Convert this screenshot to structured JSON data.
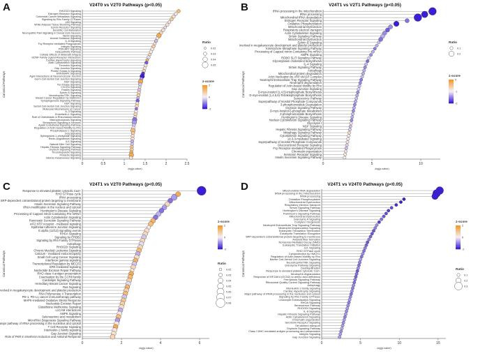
{
  "chart_data": [
    {
      "panel": "A",
      "type": "scatter",
      "title": "V24T0 vs V2T0 Pathways (p<0.05)",
      "xlabel": "-log(p-value)",
      "ylabel": "Canonical Pathways",
      "xlim": [
        0,
        2.5
      ],
      "xticks": [
        0,
        0.5,
        1,
        1.5,
        2,
        2.5
      ],
      "categories": [
        "RHOGDI Signaling",
        "Estrogen Receptor Signaling",
        "Colorectal Cancer Metastasis Signaling",
        "Signaling by Rho Family GTPases",
        "p53 Signaling",
        "White Adipose Tissue Browning Pathway",
        "Ephrin Receptor Signaling",
        "Dendritic Cell Maturation",
        "Neuropathic Pain Signaling In Dorsal Horn Neurons",
        "Netrin Signaling",
        "Axonal Guidance Signaling",
        "IL-8 Signaling",
        "Fcy Receptor-mediated Phagocytosis",
        "Integrin Signaling",
        "PI3K/AKT Signaling",
        "Osteoarthritis Pathway",
        "Cellular Effects of Sildenafil (Viagra)",
        "GDNF Family Ligand-Receptor Interactions",
        "Cardiac Hypertrophy Signaling",
        "Actin Cytoskeleton Signaling",
        "Thrombin Signaling",
        "Gap Junction Signaling",
        "Protein Kinase A Signaling",
        "ERK/MAPK Signaling",
        "Agrin Interactions at Neuromuscular Junction",
        "Germ Cell-Sertoli Cell Junction Signaling",
        "NGF Signaling",
        "Tec Kinase Signaling",
        "CXCR4 Signaling",
        "Paxillin Signaling",
        "Ephrin B Signaling",
        "Neurotrophin/TRK Signaling",
        "Breast Cancer Regulation by Stathmin1",
        "Synaptogenesis Signaling Pathway",
        "HGF Signaling",
        "Sertoli Cell-Sertoli Cell Junction Signaling",
        "Molecular Mechanisms of Cancer",
        "IL-3 Signaling",
        "Endothelin-1 Signaling",
        "Role of Osteoblasts in Rheumatoid Arthritis",
        "Macropinocytosis Signaling",
        "Semaphorin Signaling in Neurons",
        "Apelin Endothelial Signaling Pathway",
        "Regulation of Actin-based Motility by Rho",
        "Phospholipase C Signaling",
        "Gαq Signaling",
        "Sphingosine-1-phosphate Signaling",
        "Renin-Angiotensin Signaling",
        "ILK Signaling",
        "Natural Killer Cell Signaling",
        "Hepatic Fibrosis Signaling Pathway",
        "Oxytocin Signaling Pathway",
        "Thrombopoietin Signaling",
        "Prolactin Signaling",
        "Glioma Invasiveness Signaling"
      ],
      "x": [
        2.3,
        2.23,
        2.18,
        2.13,
        2.08,
        2.03,
        1.98,
        1.93,
        1.88,
        1.83,
        1.79,
        1.76,
        1.73,
        1.7,
        1.67,
        1.64,
        1.61,
        1.58,
        1.55,
        1.53,
        1.51,
        1.49,
        1.47,
        1.45,
        1.43,
        1.41,
        1.39,
        1.38,
        1.37,
        1.36,
        1.35,
        1.34,
        1.33,
        1.32,
        1.31,
        1.3,
        1.29,
        1.28,
        1.27,
        1.26,
        1.25,
        1.24,
        1.23,
        1.22,
        1.21,
        1.21,
        1.2,
        1.2,
        1.19,
        1.19,
        1.18,
        1.18,
        1.17,
        1.17,
        1.16
      ],
      "zscore": [
        1.2,
        0.3,
        0.4,
        0.8,
        0.2,
        0.4,
        -0.2,
        0.4,
        0.6,
        1.6,
        0.2,
        -0.5,
        0.4,
        0.8,
        0.2,
        0.2,
        0.6,
        -0.2,
        1.4,
        -1.4,
        0.4,
        0.2,
        0.8,
        -1.8,
        -2,
        -0.8,
        1.6,
        -0.4,
        0.4,
        -0.4,
        0.6,
        0.8,
        -0.6,
        -1.4,
        0.4,
        0.6,
        -1.2,
        0.2,
        0.6,
        0.6,
        -1.2,
        -0.8,
        -0.4,
        0.2,
        1.2,
        0.8,
        0.4,
        0.4,
        -0.6,
        -0.4,
        1,
        0.8,
        1.4,
        1.6,
        0.4
      ],
      "ratio": [
        0.03,
        0.03,
        0.03,
        0.03,
        0.025,
        0.03,
        0.025,
        0.03,
        0.03,
        0.04,
        0.025,
        0.03,
        0.025,
        0.03,
        0.03,
        0.03,
        0.025,
        0.03,
        0.025,
        0.03,
        0.03,
        0.025,
        0.03,
        0.03,
        0.04,
        0.03,
        0.04,
        0.03,
        0.025,
        0.03,
        0.03,
        0.03,
        0.025,
        0.03,
        0.03,
        0.03,
        0.025,
        0.03,
        0.03,
        0.03,
        0.04,
        0.04,
        0.03,
        0.03,
        0.04,
        0.03,
        0.03,
        0.03,
        0.03,
        0.025,
        0.03,
        0.03,
        0.03,
        0.04,
        0.03
      ],
      "legend_ratio_title": "Ratio",
      "legend_ratio_values": [
        "0.02",
        "0.03",
        "0.04",
        "0.05"
      ],
      "legend_z_title": "z-score",
      "legend_z_ticks": [
        "2",
        "0",
        "-2"
      ]
    },
    {
      "panel": "B",
      "type": "scatter",
      "title": "V24T1 vs V2T1 Pathways (p<0.05)",
      "xlabel": "-log(p-value)",
      "ylabel": "Canonical Pathways",
      "xlim": [
        0,
        12
      ],
      "xticks": [
        0,
        5,
        10
      ],
      "categories": [
        "tRNA processing in the mitochondrion",
        "tRNA processing",
        "Mitochondrial tRNA degradation",
        "Estrogen Receptor Signaling",
        "Oxidative Phosphorylation",
        "Mitochondrial Dysfunction",
        "Respiratory electron transport",
        "Actin Cytoskeleton Signaling",
        "Sirtuin Signaling Pathway",
        "Mitochondrial Dysfunction",
        "Ephrin B Signaling",
        "Factors involved in megakaryocyte development and platelet production",
        "Kinetochore Metaphase Signaling Pathway",
        "Processing of Capped Intron-Containing Pre-mRNA",
        "AMPK Signaling",
        "ROBO SLIT Signaling Pathway",
        "Glycosylation cholesterol biosynthesis",
        "IL-4 Signaling",
        "Sirtuin Signaling Pathway",
        "Autophagy",
        "Mitochondrial protein degradation",
        "Actin Nucleation by ARP-WASP Complex",
        "Neutrophil Extracellular Trap Signaling Pathway",
        "Neutrophil degranulation",
        "Regulation of Actin-based Motility by Rho",
        "Gap Junction Signaling",
        "D-myo-inositol (1,4,5)-trisphosphate Biosynthesis",
        "D-myo-inositol (1,4,5,6)-Tetrakisphosphate Biosynthesis",
        "Senescence Pathway",
        "Superpathway of Inositol Phosphate Compounds",
        "3-phosphoinositide Degradation",
        "Oxytocin Signaling Pathway",
        "D-myo-inositol-5-phosphate Metabolism",
        "3-phosphoinositide Biosynthesis",
        "Huntington's Disease Signaling",
        "Nuclear Cytoskeleton Signaling Pathway",
        "Glycolysis I",
        "NGF Signaling",
        "Hepatic Fibrosis Signaling Pathway",
        "Mitophagy Signaling Pathway",
        "Cytoskeleton Signaling Pathway",
        "14-3-3-mediated Signaling",
        "Superpathway of Inositol Phosphate Compounds",
        "Glucocorticoid Receptor Signaling",
        "Fcy Receptor-mediated Phagocytosis",
        "Chromatin organization",
        "Serotonin Receptor Signaling",
        "Insulin Secretion Signaling Pathway"
      ],
      "x": [
        11.2,
        10.4,
        9.7,
        8.6,
        7.5,
        6.9,
        6.6,
        6.3,
        6.1,
        5.9,
        5.7,
        5.5,
        5.3,
        5.1,
        4.9,
        4.7,
        4.55,
        4.4,
        4.3,
        4.2,
        4.1,
        4.0,
        3.9,
        3.8,
        3.72,
        3.64,
        3.56,
        3.48,
        3.4,
        3.32,
        3.24,
        3.17,
        3.1,
        3.04,
        2.98,
        2.92,
        2.86,
        2.8,
        2.74,
        2.68,
        2.62,
        2.56,
        2.5,
        2.44,
        2.38,
        2.32,
        2.26,
        2.2
      ],
      "zscore": [
        -2.5,
        -2.5,
        -2.5,
        -1.5,
        -2.5,
        -1.2,
        -1.8,
        -1.2,
        -0.8,
        -1.5,
        -0.6,
        -0.8,
        -1.4,
        -0.8,
        -1.2,
        -0.4,
        -1.6,
        -0.6,
        -1.2,
        -0.8,
        -0.8,
        -0.6,
        -1.4,
        -1.2,
        -0.6,
        -0.4,
        -1.2,
        -0.8,
        -0.6,
        -0.8,
        -1.2,
        -0.8,
        -1.2,
        -0.6,
        -0.8,
        -1.2,
        0.4,
        -0.6,
        -0.4,
        0.6,
        0.2,
        0.2,
        0.4,
        -0.4,
        -0.6,
        0.4,
        0.2,
        0.2
      ],
      "ratio": [
        0.3,
        0.25,
        0.3,
        0.15,
        0.2,
        0.15,
        0.15,
        0.15,
        0.15,
        0.15,
        0.1,
        0.1,
        0.1,
        0.1,
        0.1,
        0.1,
        0.1,
        0.1,
        0.1,
        0.1,
        0.1,
        0.1,
        0.1,
        0.1,
        0.1,
        0.1,
        0.1,
        0.1,
        0.1,
        0.1,
        0.1,
        0.1,
        0.1,
        0.1,
        0.1,
        0.1,
        0.1,
        0.1,
        0.1,
        0.1,
        0.1,
        0.1,
        0.1,
        0.1,
        0.1,
        0.1,
        0.1,
        0.1
      ],
      "legend_ratio_title": "Ratio",
      "legend_ratio_values": [
        "0.1",
        "0.2"
      ],
      "legend_z_title": "z-score",
      "legend_z_ticks": [
        "0",
        "-1",
        "-2"
      ]
    },
    {
      "panel": "C",
      "type": "scatter",
      "title": "V24T1 vs V2T0 Pathways (p<0.05)",
      "xlabel": "-log(p-value)",
      "ylabel": "Canonical Pathways",
      "xlim": [
        0,
        6.5
      ],
      "xticks": [
        0,
        2,
        4,
        6
      ],
      "categories": [
        "Response to elevated platelet cytosolic Ca2+",
        "RHO GTPase cycle",
        "tRNA processing",
        "SRP-dependent cotranslational protein targeting to membrane",
        "Insulin Secretion Signaling Pathway",
        "tRNA modification in the nucleus and cytosol",
        "Huntington's Disease Signaling",
        "Processing of Capped Intron-Containing Pre-mRNA",
        "Actin Cytoskeleton Signaling",
        "Pancreatic Secretion Signaling Pathway",
        "eIF2 NTP receptor - mediated signaling",
        "Epithelial Adherens Junction Signaling",
        "G alpha (12/13) signalling events",
        "RHOA Signaling",
        "Signaling by ERBB2",
        "Signaling by Rho Family GTPases",
        "Autophagy",
        "RHOGDI Signaling",
        "Chronic Myeloid Leukemia Signaling",
        "Calcium - mediated endocrinopathy",
        "Small Cell Lung Cancer Signaling",
        "Interferon gamma signaling",
        "Transcriptional Regulation by MECP2",
        "ERK-mediated signaling",
        "Nucleotide Excision Repair Pathway",
        "RHO class II antigen presentation",
        "Coactivation by the CCR8 family",
        "Cardiolipin Signaling Pathway",
        "Hereditary Breast Cancer Signaling",
        "Ras Signaling",
        "Factors involved in megakaryocyte development and platelet production",
        "RNA Polymerase II Transcription",
        "PD-1, PD-L1 cancer immunotherapy pathway",
        "MAPK-mediated Oxidative Stress Response",
        "Nucleotide Excision Repair",
        "Glutathione Methionine Signaling",
        "L1CAM interactions",
        "AMPK Signaling",
        "Selenoamino acid metabolism",
        "MicroRNA Biogenesis Signaling Pathway",
        "Major pathway of rRNA processing in the nucleolus and cytosol",
        "T Cell Receptor Signaling",
        "Interleukin-1 family signaling",
        "Gap Junction Signaling",
        "Role of PKR in Interferon Induction and Antiviral Response"
      ],
      "x": [
        6.1,
        4.9,
        4.7,
        4.5,
        4.35,
        4.2,
        4.05,
        3.9,
        3.75,
        3.62,
        3.5,
        3.4,
        3.3,
        3.22,
        3.15,
        3.08,
        3.02,
        2.96,
        2.9,
        2.84,
        2.78,
        2.72,
        2.66,
        2.6,
        2.55,
        2.5,
        2.45,
        2.4,
        2.35,
        2.3,
        2.25,
        2.2,
        2.15,
        2.1,
        2.05,
        2.0,
        1.95,
        1.9,
        1.85,
        1.8,
        1.75,
        1.7,
        1.65,
        1.6,
        1.55
      ],
      "zscore": [
        -2,
        1.6,
        -0.8,
        -1.2,
        0.6,
        -0.8,
        -1.2,
        -0.6,
        -1.2,
        1.4,
        1.2,
        0.2,
        0.4,
        0.6,
        -0.4,
        0.6,
        -0.2,
        0.6,
        1.2,
        -0.6,
        0.4,
        1.4,
        -0.4,
        0.6,
        0.2,
        1.6,
        1.2,
        0.8,
        -0.2,
        1.4,
        0.8,
        1.2,
        -0.4,
        1,
        0.8,
        0.4,
        -0.6,
        0.2,
        1.2,
        -0.8,
        0.2,
        1.6,
        0.2,
        0.4,
        0.6
      ],
      "ratio": [
        0.08,
        0.04,
        0.05,
        0.04,
        0.04,
        0.04,
        0.04,
        0.04,
        0.04,
        0.04,
        0.04,
        0.03,
        0.04,
        0.04,
        0.04,
        0.04,
        0.04,
        0.04,
        0.04,
        0.04,
        0.04,
        0.04,
        0.04,
        0.04,
        0.03,
        0.04,
        0.04,
        0.04,
        0.04,
        0.04,
        0.04,
        0.04,
        0.04,
        0.04,
        0.04,
        0.04,
        0.04,
        0.04,
        0.04,
        0.04,
        0.04,
        0.04,
        0.04,
        0.04,
        0.04
      ],
      "legend_z_title": "z-score",
      "legend_z_ticks": [
        "2",
        "0",
        "-2"
      ],
      "legend_ratio_title": "Ratio",
      "legend_ratio_values": [
        "0.02",
        "0.03",
        "0.04",
        "0.05",
        "0.06",
        "0.07",
        "0.08"
      ]
    },
    {
      "panel": "D",
      "type": "scatter",
      "title": "V24T1 vs V24T0 Pathways (p<0.05)",
      "xlabel": "-log(p-value)",
      "ylabel": "Canonical Pathways",
      "xlim": [
        0,
        16
      ],
      "xticks": [
        0,
        5,
        10,
        15
      ],
      "categories": [
        "Mitochondrial RNA degradation",
        "tRNA processing in the mitochondrion",
        "tRNA processing",
        "Oxidative Phosphorylation",
        "Mitochondrial Dysfunction",
        "Respiratory electron transport",
        "Sirtuin Signaling Pathway",
        "Huntington's Disease Signaling",
        "Parkinson's Signaling Pathway",
        "Mitochondrial Dysfunction",
        "Granzyme A Signaling",
        "Complex I biogenesis",
        "Neutrophil Extracellular Trap Signaling Pathway",
        "Neutrophil Degranulation Signaling",
        "Eukaryotic Translation Termination",
        "Eukaryotic Translation Elongation",
        "SRP-dependent cotranslational protein targeting to membrane",
        "Amyloid fiber formation",
        "Nonsense-Mediated Decay (NMD)",
        "Eukaryotic Translation Initiation",
        "ILK Signaling",
        "RHO GTPase cycle",
        "Cytoprotection by HMOX1",
        "Regulation of Actin-based Motility by Rho",
        "Barrier Cell-Sertoli Cell Junction Signaling",
        "Neurotrophin/TRK Signaling",
        "Granzyme Pathway Signaling",
        "Deubiquitination",
        "Response to elevated platelet cytosolic Ca2+",
        "Neutrophil degranulation",
        "Response of EIF2AK4 (GCN2) to amino acid deficiency",
        "Ferroptosis Signaling Pathway",
        "Ribosomal Quality Control Signaling Pathway",
        "Autophagy",
        "Interleukin-1 family signaling",
        "Cardiac Hypertrophy Signaling",
        "Major pathway of rRNA processing in the nucleolus and cytosol",
        "Signaling by Rho Family GTPases",
        "Leukocyte Extravasation Signaling",
        "RHOA Signaling",
        "Senescence Pathway",
        "RHOGDI Signaling",
        "IL-8 Signaling",
        "Hepatic Fibrosis Signaling Pathway",
        "Actin Cytoskeleton Signaling",
        "Chromatin organization",
        "Serotonin Receptor Signaling",
        "Sirt aliment transport",
        "Oxytocin Signaling Pathway",
        "Class I MHC mediated antigen processing and presentation",
        "Integrin Signaling",
        "Gap Junction Signaling"
      ],
      "x": [
        15.2,
        14.8,
        14.6,
        10.6,
        10.2,
        9.6,
        9.0,
        8.6,
        8.3,
        8.0,
        7.7,
        7.4,
        7.1,
        6.9,
        6.7,
        6.5,
        6.3,
        6.1,
        5.9,
        5.75,
        5.6,
        5.45,
        5.3,
        5.15,
        5.0,
        4.9,
        4.8,
        4.7,
        4.6,
        4.5,
        4.4,
        4.3,
        4.2,
        4.1,
        4.0,
        3.9,
        3.8,
        3.7,
        3.6,
        3.5,
        3.4,
        3.3,
        3.2,
        3.1,
        3.0,
        2.9,
        2.8,
        2.7,
        2.6,
        2.5,
        2.4,
        2.3
      ],
      "zscore": [
        -3,
        -3,
        -3,
        -3,
        -3,
        -2.8,
        -2.4,
        -2.6,
        -2.4,
        -2.2,
        -1.8,
        -2.6,
        -1.4,
        -1.6,
        -2.2,
        -2.2,
        -2,
        -1.6,
        -2.2,
        -2,
        -1.6,
        -1.8,
        -1.4,
        -1.8,
        -1.2,
        -1.6,
        -1.8,
        -1.4,
        -2.2,
        -1.8,
        -2,
        -1.6,
        -1.8,
        -1.4,
        -1.6,
        -1.4,
        -1.8,
        -1.4,
        -1.2,
        -1.6,
        -1.4,
        -1.2,
        -1.4,
        -1.2,
        -1.6,
        -1.2,
        -1.4,
        -1.2,
        -1,
        -1.4,
        -1.2,
        -1.2
      ],
      "ratio": [
        0.3,
        0.3,
        0.25,
        0.1,
        0.1,
        0.1,
        0.1,
        0.1,
        0.1,
        0.1,
        0.1,
        0.1,
        0.1,
        0.1,
        0.1,
        0.1,
        0.1,
        0.1,
        0.1,
        0.1,
        0.1,
        0.1,
        0.1,
        0.1,
        0.1,
        0.1,
        0.1,
        0.1,
        0.1,
        0.1,
        0.1,
        0.1,
        0.1,
        0.1,
        0.1,
        0.1,
        0.1,
        0.1,
        0.1,
        0.1,
        0.1,
        0.1,
        0.1,
        0.1,
        0.1,
        0.1,
        0.1,
        0.1,
        0.1,
        0.1,
        0.1,
        0.1
      ],
      "legend_z_title": "z-score",
      "legend_z_ticks": [
        "2",
        "0",
        "-2"
      ],
      "legend_ratio_title": "Ratio",
      "legend_ratio_values": [
        "0.1",
        "0.2",
        "0.3"
      ]
    }
  ],
  "colors": {
    "positive": "#f39a2b",
    "neutral": "#f7f0f7",
    "negative": "#3b1fd6",
    "stem": "#888888"
  }
}
